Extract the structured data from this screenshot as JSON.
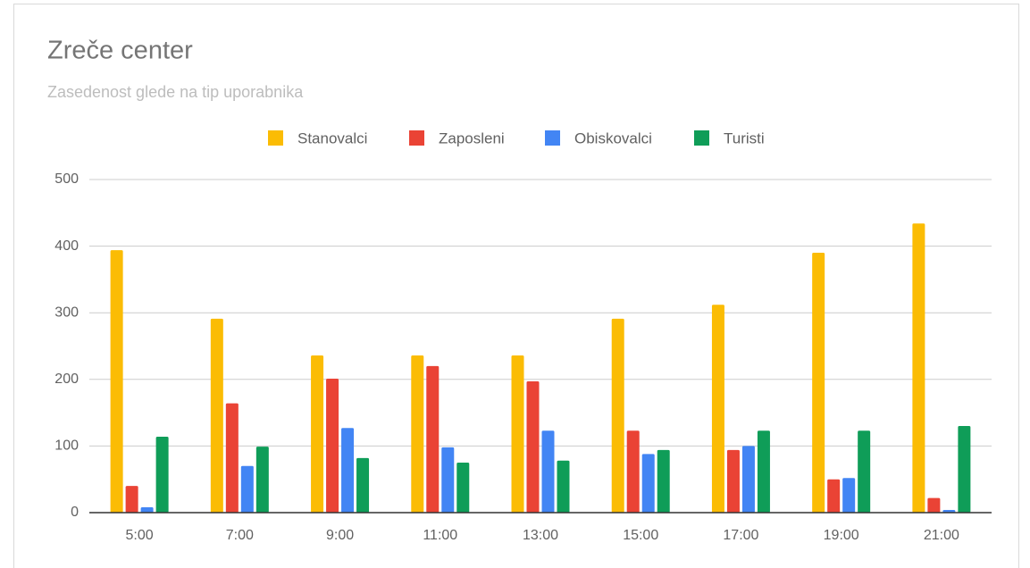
{
  "chart_data": {
    "type": "bar",
    "title": "Zreče center",
    "subtitle": "Zasedenost glede na tip uporabnika",
    "categories": [
      "5:00",
      "7:00",
      "9:00",
      "11:00",
      "13:00",
      "15:00",
      "17:00",
      "19:00",
      "21:00"
    ],
    "series": [
      {
        "name": "Stanovalci",
        "color": "#fbbc04",
        "values": [
          394,
          291,
          236,
          236,
          236,
          291,
          312,
          390,
          434
        ]
      },
      {
        "name": "Zaposleni",
        "color": "#ea4335",
        "values": [
          40,
          164,
          201,
          220,
          197,
          123,
          94,
          50,
          22
        ]
      },
      {
        "name": "Obiskovalci",
        "color": "#4285f4",
        "values": [
          8,
          70,
          127,
          98,
          123,
          88,
          100,
          52,
          4
        ]
      },
      {
        "name": "Turisti",
        "color": "#0f9d58",
        "values": [
          114,
          99,
          82,
          75,
          78,
          94,
          123,
          123,
          130
        ]
      }
    ],
    "ylim": [
      0,
      500
    ],
    "yticks": [
      0,
      100,
      200,
      300,
      400,
      500
    ],
    "grid": true,
    "legend": "top"
  }
}
